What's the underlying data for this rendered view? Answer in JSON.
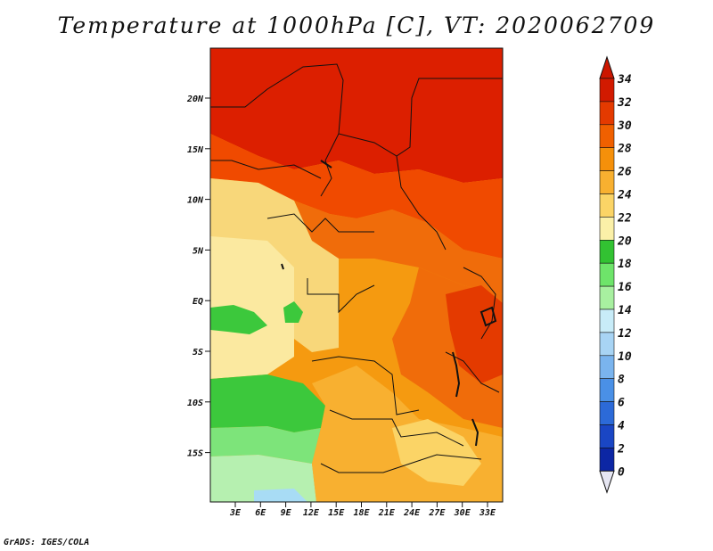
{
  "title": "Temperature at 1000hPa [C], VT: 2020062709",
  "footer": "GrADS: IGES/COLA",
  "map": {
    "lat_labels": [
      "20N",
      "15N",
      "10N",
      "5N",
      "EQ",
      "5S",
      "10S",
      "15S"
    ],
    "lon_labels": [
      "3E",
      "6E",
      "9E",
      "12E",
      "15E",
      "18E",
      "21E",
      "24E",
      "27E",
      "30E",
      "33E"
    ],
    "regions": [
      {
        "name": "sahara-north",
        "color": "#dc1f00"
      },
      {
        "name": "sahel-band",
        "color": "#f04a00"
      },
      {
        "name": "north-central",
        "color": "#f06c0a"
      },
      {
        "name": "central-basin",
        "color": "#f59a10"
      },
      {
        "name": "west-coast",
        "color": "#f8d77a"
      },
      {
        "name": "gulf-guinea",
        "color": "#fbe9a0"
      },
      {
        "name": "angola-green",
        "color": "#3cc83c"
      },
      {
        "name": "namibia-green",
        "color": "#7de47a"
      },
      {
        "name": "south-atlantic",
        "color": "#b6f0b0"
      },
      {
        "name": "cool-corner",
        "color": "#a8dcf5"
      }
    ]
  },
  "colorbar": {
    "levels": [
      "34",
      "32",
      "30",
      "28",
      "26",
      "24",
      "22",
      "20",
      "18",
      "16",
      "14",
      "12",
      "10",
      "8",
      "6",
      "4",
      "2",
      "0"
    ],
    "colors": [
      "#d21a00",
      "#e43a00",
      "#f06000",
      "#f5900a",
      "#f8b030",
      "#fbd466",
      "#fbf0a8",
      "#32c232",
      "#6ee46a",
      "#a8f0a0",
      "#c8ecf8",
      "#a8d4f4",
      "#7ab4ee",
      "#4a90e6",
      "#2c6ad8",
      "#1a46c4",
      "#0c26a4",
      "#061070"
    ],
    "top_color": "#cc1600",
    "bottom_color": "#e6e6f2"
  }
}
